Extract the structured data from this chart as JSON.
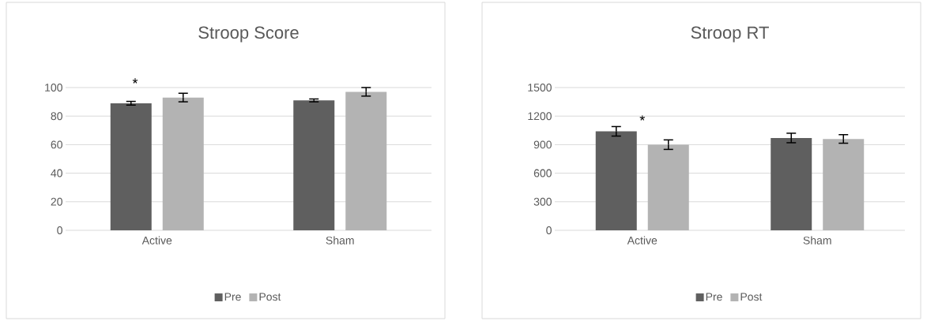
{
  "chart_data": [
    {
      "type": "bar",
      "title": "Stroop Score",
      "categories": [
        "Active",
        "Sham"
      ],
      "series": [
        {
          "name": "Pre",
          "color": "#5f5f5f",
          "values": [
            89,
            91
          ],
          "errors": [
            1.3,
            1
          ]
        },
        {
          "name": "Post",
          "color": "#b3b3b3",
          "values": [
            93,
            97
          ],
          "errors": [
            3,
            3
          ]
        }
      ],
      "ylim": [
        0,
        100
      ],
      "yticks": [
        0,
        20,
        40,
        60,
        80,
        100
      ],
      "grid": "y",
      "legend": "bottom",
      "annotations": [
        "*"
      ]
    },
    {
      "type": "bar",
      "title": "Stroop RT",
      "categories": [
        "Active",
        "Sham"
      ],
      "series": [
        {
          "name": "Pre",
          "color": "#5f5f5f",
          "values": [
            1040,
            970
          ],
          "errors": [
            50,
            50
          ]
        },
        {
          "name": "Post",
          "color": "#b3b3b3",
          "values": [
            900,
            960
          ],
          "errors": [
            50,
            45
          ]
        }
      ],
      "ylim": [
        0,
        1500
      ],
      "yticks": [
        0,
        300,
        600,
        900,
        1200,
        1500
      ],
      "grid": "y",
      "legend": "bottom",
      "annotations": [
        "*"
      ]
    }
  ]
}
